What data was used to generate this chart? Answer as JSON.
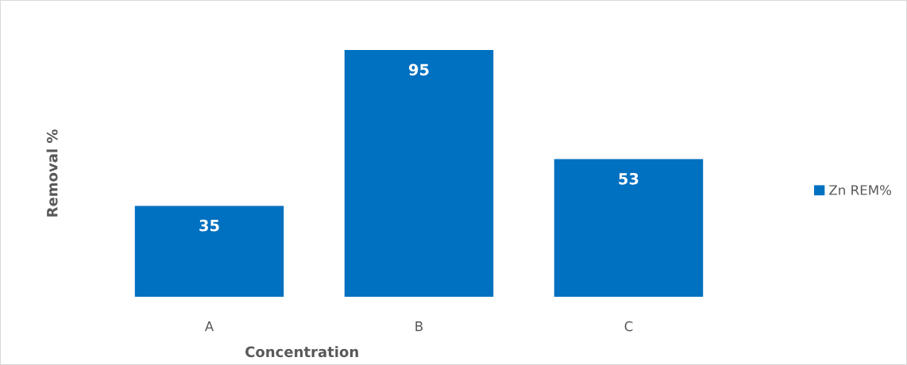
{
  "chart_data": {
    "type": "bar",
    "xlabel": "Concentration",
    "ylabel": "Removal %",
    "categories": [
      "A",
      "B",
      "C"
    ],
    "series": [
      {
        "name": "Zn REM%",
        "color": "#0070c0",
        "values": [
          35,
          95,
          53
        ]
      }
    ],
    "data_labels": true,
    "legend": "right",
    "grid": false
  }
}
